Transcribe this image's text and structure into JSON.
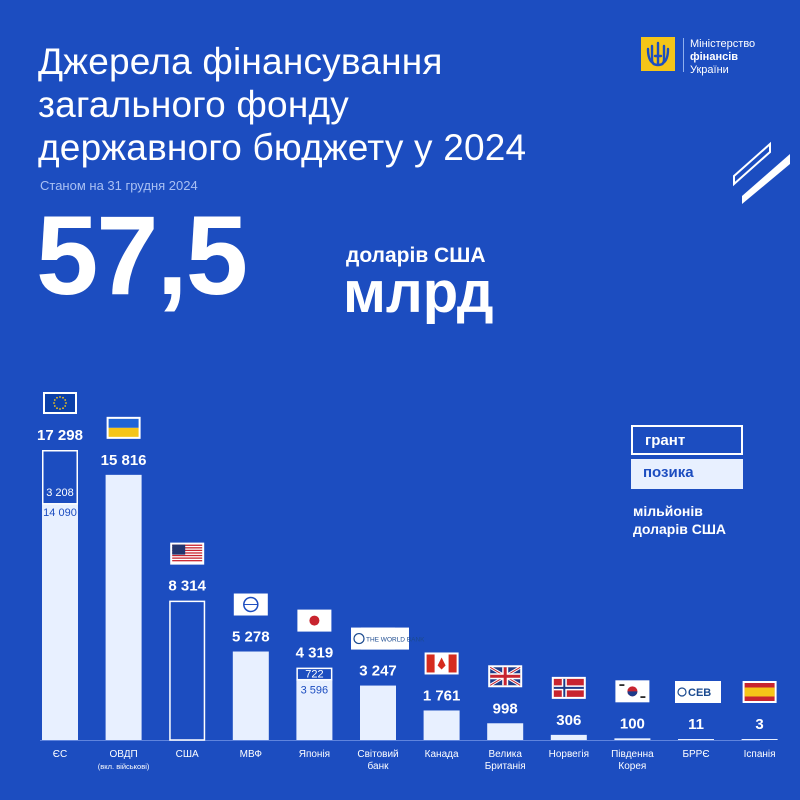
{
  "title_lines": [
    "Джерела фінансування",
    "загального фонду",
    "державного бюджету у 2024"
  ],
  "date": "Станом на 31 грудня 2024",
  "total": {
    "value": "57,5",
    "unit_small": "доларів США",
    "unit_big": "млрд"
  },
  "logo": {
    "lines": [
      "Міністерство",
      "фінансів",
      "України"
    ]
  },
  "legend": {
    "grant": "грант",
    "loan": "позика",
    "unit_lines": [
      "мільйонів",
      "доларів США"
    ]
  },
  "colors": {
    "background": "#1c4dc0",
    "loan_fill": "#e8f0ff",
    "grant_outline": "#ffffff"
  },
  "chart_data": {
    "type": "bar",
    "stacked": true,
    "unit": "мільйонів доларів США",
    "ylim": [
      0,
      17298
    ],
    "grid": false,
    "legend_position": "right",
    "categories": [
      {
        "label": "ЄС",
        "total_label": "17 298",
        "total": 17298,
        "grant": 3208,
        "loan": 14090,
        "grant_label": "3 208",
        "loan_label": "14 090",
        "icon": "eu-flag-icon"
      },
      {
        "label": "ОВДП",
        "sublabel": "(вкл. військові)",
        "total_label": "15 816",
        "total": 15816,
        "grant": 0,
        "loan": 15816,
        "icon": "ukraine-flag-icon"
      },
      {
        "label": "США",
        "total_label": "8 314",
        "total": 8314,
        "grant": 8314,
        "loan": 0,
        "icon": "usa-flag-icon"
      },
      {
        "label": "МВФ",
        "total_label": "5 278",
        "total": 5278,
        "grant": 0,
        "loan": 5278,
        "icon": "imf-logo-icon"
      },
      {
        "label": "Японія",
        "total_label": "4 319",
        "total": 4319,
        "grant": 722,
        "loan": 3596,
        "grant_label": "722",
        "loan_label": "3 596",
        "icon": "japan-flag-icon"
      },
      {
        "label": "Світовий банк",
        "label_lines": [
          "Світовий",
          "банк"
        ],
        "total_label": "3 247",
        "total": 3247,
        "grant": 0,
        "loan": 3247,
        "icon": "world-bank-logo-icon",
        "logo_text": "THE WORLD BANK"
      },
      {
        "label": "Канада",
        "total_label": "1 761",
        "total": 1761,
        "grant": 0,
        "loan": 1761,
        "icon": "canada-flag-icon"
      },
      {
        "label": "Велика Британія",
        "label_lines": [
          "Велика",
          "Британія"
        ],
        "total_label": "998",
        "total": 998,
        "grant": 0,
        "loan": 998,
        "icon": "uk-flag-icon"
      },
      {
        "label": "Норвегія",
        "total_label": "306",
        "total": 306,
        "grant": 0,
        "loan": 306,
        "icon": "norway-flag-icon"
      },
      {
        "label": "Південна Корея",
        "label_lines": [
          "Південна",
          "Корея"
        ],
        "total_label": "100",
        "total": 100,
        "grant": 0,
        "loan": 100,
        "icon": "korea-flag-icon"
      },
      {
        "label": "БРРЄ",
        "total_label": "11",
        "total": 11,
        "grant": 0,
        "loan": 11,
        "icon": "ceb-logo-icon",
        "logo_text": "CEB"
      },
      {
        "label": "Іспанія",
        "total_label": "3",
        "total": 3,
        "grant": 0,
        "loan": 3,
        "icon": "spain-flag-icon"
      }
    ]
  }
}
